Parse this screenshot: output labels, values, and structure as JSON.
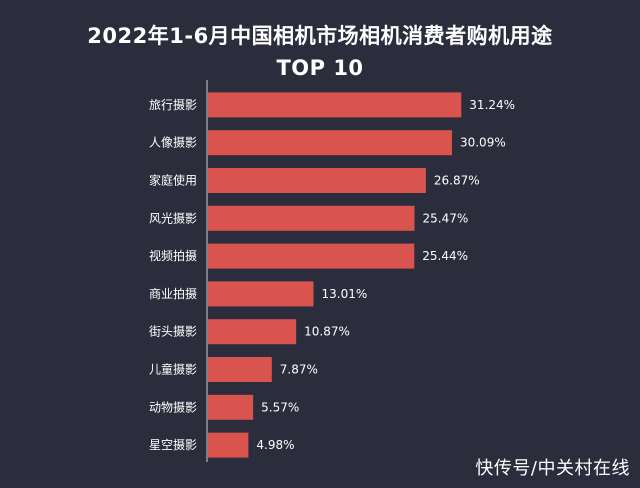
{
  "chart_data": {
    "type": "bar",
    "orientation": "horizontal",
    "title": "2022年1-6月中国相机市场相机消费者购机用途",
    "subtitle": "TOP 10",
    "categories": [
      "旅行摄影",
      "人像摄影",
      "家庭使用",
      "风光摄影",
      "视频拍摄",
      "商业拍摄",
      "街头摄影",
      "儿童摄影",
      "动物摄影",
      "星空摄影"
    ],
    "values": [
      31.24,
      30.09,
      26.87,
      25.47,
      25.44,
      13.01,
      10.87,
      7.87,
      5.57,
      4.98
    ],
    "value_labels": [
      "31.24%",
      "30.09%",
      "26.87%",
      "25.47%",
      "25.44%",
      "13.01%",
      "10.87%",
      "7.87%",
      "5.57%",
      "4.98%"
    ],
    "xlim": [
      0,
      37
    ],
    "grid": false,
    "bar_color": "#d9534f",
    "axis_line_color": "#cfcfcf"
  },
  "watermark": "快传号/中关村在线"
}
